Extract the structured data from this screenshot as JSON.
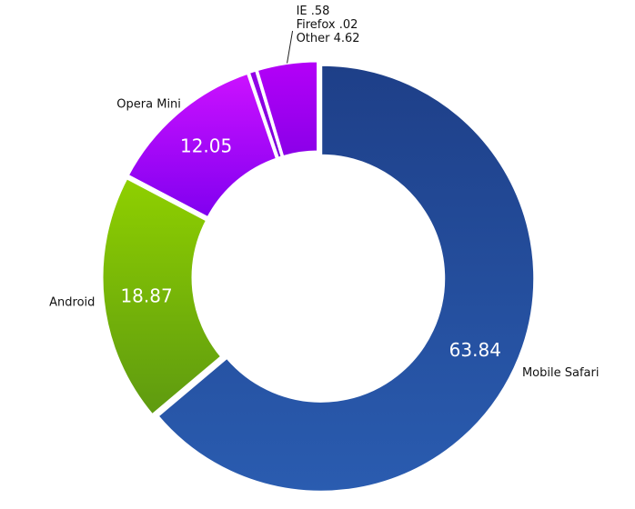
{
  "chart_data": {
    "type": "pie",
    "style": "donut",
    "title": "",
    "slices": [
      {
        "name": "Mobile Safari",
        "value": 63.84,
        "display_value": "63.84",
        "colors": [
          "#1e3f88",
          "#2a5cb0"
        ]
      },
      {
        "name": "Android",
        "value": 18.87,
        "display_value": "18.87",
        "colors": [
          "#8fd000",
          "#5e9a10"
        ]
      },
      {
        "name": "Opera Mini",
        "value": 12.05,
        "display_value": "12.05",
        "colors": [
          "#cc11ff",
          "#8000f0"
        ]
      },
      {
        "name": "IE",
        "value": 0.58,
        "display_value": ".58",
        "colors": [
          "#9400e8",
          "#7a00d8"
        ]
      },
      {
        "name": "Firefox",
        "value": 0.02,
        "display_value": ".02",
        "colors": [
          "#9400e8",
          "#7a00d8"
        ]
      },
      {
        "name": "Other",
        "value": 4.62,
        "display_value": "4.62",
        "colors": [
          "#b400f8",
          "#8a00e8"
        ]
      }
    ],
    "small_slices_label_lines": [
      "IE .58",
      "Firefox .02",
      "Other 4.62"
    ]
  }
}
